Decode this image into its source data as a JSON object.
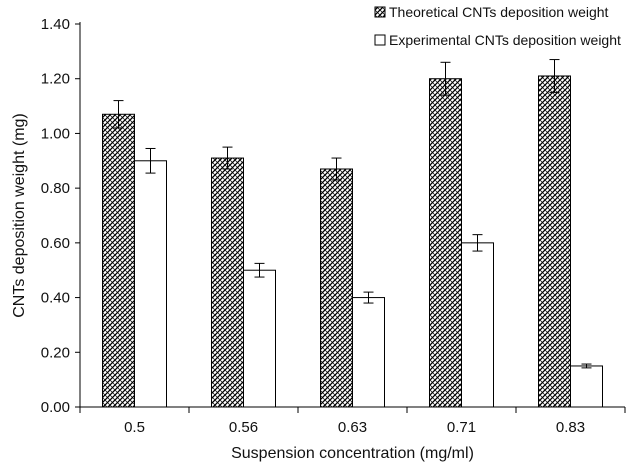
{
  "chart_data": {
    "type": "bar",
    "title": "",
    "xlabel": "Suspension concentration (mg/ml)",
    "ylabel": "CNTs deposition weight (mg)",
    "categories": [
      "0.5",
      "0.56",
      "0.63",
      "0.71",
      "0.83"
    ],
    "ylim": [
      0,
      1.4
    ],
    "yticks": [
      "0.00",
      "0.20",
      "0.40",
      "0.60",
      "0.80",
      "1.00",
      "1.20",
      "1.40"
    ],
    "grid": false,
    "legend_position": "top-right",
    "series": [
      {
        "name": "Theoretical CNTs deposition weight",
        "pattern": "hatched",
        "color": "#000000",
        "values": [
          1.07,
          0.91,
          0.87,
          1.2,
          1.21
        ],
        "errors": [
          0.05,
          0.04,
          0.04,
          0.06,
          0.06
        ]
      },
      {
        "name": "Experimental CNTs deposition weight",
        "pattern": "solid",
        "color": "#ffffff",
        "values": [
          0.9,
          0.5,
          0.4,
          0.6,
          0.15
        ],
        "errors": [
          0.045,
          0.025,
          0.02,
          0.03,
          0.007
        ]
      }
    ]
  }
}
